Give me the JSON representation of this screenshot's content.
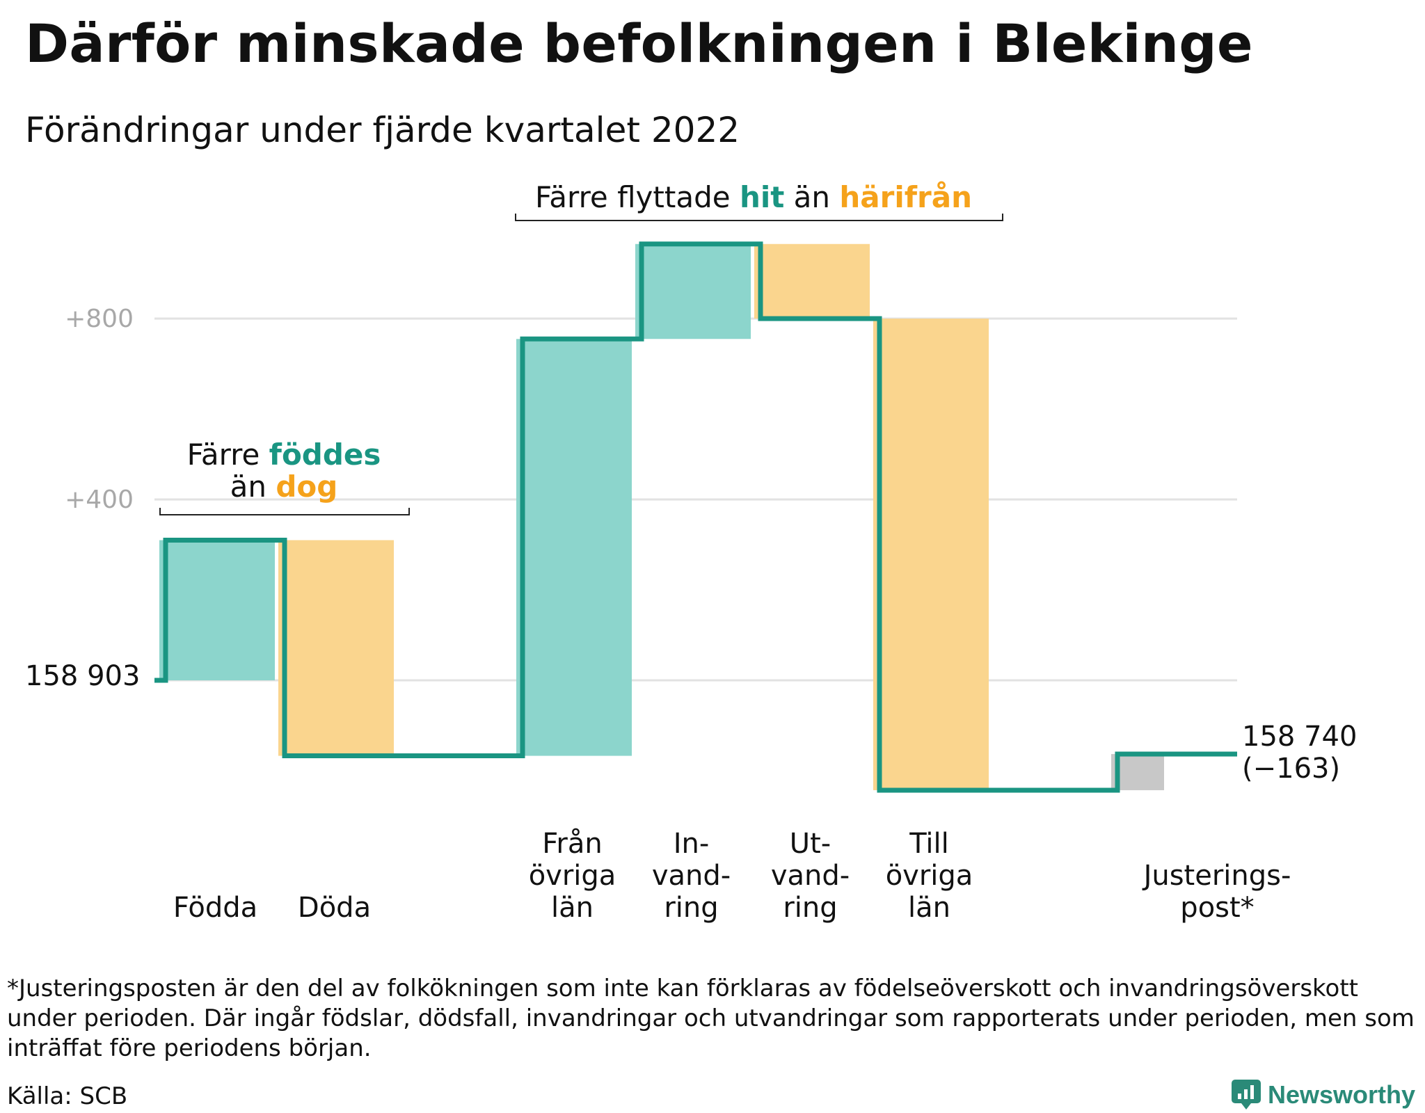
{
  "title": "Därför minskade befolkningen i Blekinge",
  "subtitle": "Förändringar under fjärde kvartalet 2022",
  "annotations": {
    "births": {
      "line1_pre": "Färre ",
      "line1_hl": "föddes",
      "line2_pre": "än ",
      "line2_hl": "dog"
    },
    "migration": {
      "pre": "Färre flyttade ",
      "hl1": "hit",
      "mid": " än ",
      "hl2": "härifrån"
    }
  },
  "labels": {
    "start": "158 903",
    "end_value": "158 740",
    "end_change": "(−163)"
  },
  "footnote": "*Justeringsposten är den del av folkökningen som inte kan förklaras av födelseöverskott och invandringsöverskott under perioden. Där ingår födslar, dödsfall, invandringar och utvandringar som rapporterats under perioden, men som inträffat före periodens början.",
  "source": "Källa: SCB",
  "brand": "Newsworthy",
  "colors": {
    "increase": "#8cd5cc",
    "decrease": "#fad58e",
    "adjustment": "#c8c8c8",
    "line": "#1a9582",
    "highlight_teal": "#1a9582",
    "highlight_orange": "#f5a21b",
    "grid": "#e2e2e2",
    "tick_label": "#a8a8a8"
  },
  "chart_data": {
    "type": "waterfall",
    "baseline": 0,
    "y_ticks": [
      {
        "value": 400,
        "label": "+400"
      },
      {
        "value": 800,
        "label": "+800"
      }
    ],
    "steps": [
      {
        "category": [
          "Födda"
        ],
        "start": 0,
        "end": 310,
        "kind": "increase"
      },
      {
        "category": [
          "Döda"
        ],
        "start": 310,
        "end": -167,
        "kind": "decrease"
      },
      {
        "category": [],
        "start": -167,
        "end": -167,
        "kind": "gap"
      },
      {
        "category": [
          "Från",
          "övriga",
          "län"
        ],
        "start": -167,
        "end": 755,
        "kind": "increase"
      },
      {
        "category": [
          "In-",
          "vand-",
          "ring"
        ],
        "start": 755,
        "end": 965,
        "kind": "increase"
      },
      {
        "category": [
          "Ut-",
          "vand-",
          "ring"
        ],
        "start": 965,
        "end": 800,
        "kind": "decrease"
      },
      {
        "category": [
          "Till",
          "övriga",
          "län"
        ],
        "start": 800,
        "end": -243,
        "kind": "decrease"
      },
      {
        "category": [],
        "start": -243,
        "end": -243,
        "kind": "gap"
      },
      {
        "category": [
          "Justerings-",
          "post*"
        ],
        "start": -243,
        "end": -163,
        "kind": "adjustment"
      }
    ],
    "final_change": -163
  }
}
